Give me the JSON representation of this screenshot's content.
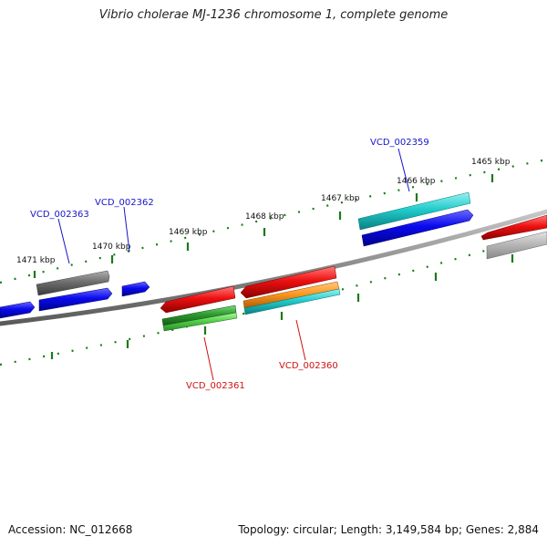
{
  "title": "Vibrio cholerae MJ-1236 chromosome 1, complete genome",
  "accession": "Accession: NC_012668",
  "summary": "Topology: circular; Length: 3,149,584 bp; Genes: 2,884",
  "colors": {
    "backbone": "#8a8a8a",
    "scale_ticks": "#1a7a1a",
    "forward_label": "#1515c8",
    "reverse_label": "#d01010",
    "blue_feature": "#0a0aee",
    "red_feature": "#ee1111",
    "cyan_feature": "#22cccc",
    "grey_feature": "#777777",
    "green_feature": "#33aa33",
    "orange_feature": "#ff9922"
  },
  "scale_labels": [
    "1471 kbp",
    "1470 kbp",
    "1469 kbp",
    "1468 kbp",
    "1467 kbp",
    "1466 kbp",
    "1465 kbp"
  ],
  "gene_labels": [
    {
      "text": "VCD_002363",
      "strand": "forward"
    },
    {
      "text": "VCD_002362",
      "strand": "forward"
    },
    {
      "text": "VCD_002359",
      "strand": "forward"
    },
    {
      "text": "VCD_002361",
      "strand": "reverse"
    },
    {
      "text": "VCD_002360",
      "strand": "reverse"
    }
  ]
}
